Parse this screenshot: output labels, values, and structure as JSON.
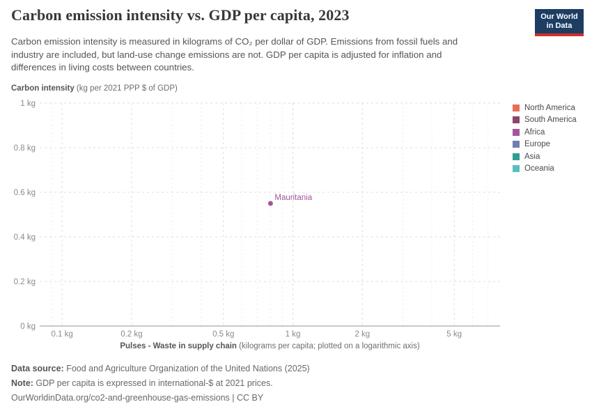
{
  "header": {
    "title": "Carbon emission intensity vs. GDP per capita, 2023",
    "subtitle_lines": [
      "Carbon emission intensity is measured in kilograms of CO₂ per dollar of GDP. Emissions from fossil fuels and",
      "industry are included, but land-use change emissions are not. GDP per capita is adjusted for inflation and",
      "differences in living costs between countries."
    ]
  },
  "logo": {
    "line1": "Our World",
    "line2": "in Data",
    "bg_color": "#1d3d63",
    "bar_color": "#cd302a"
  },
  "chart_data": {
    "type": "scatter",
    "title": "Carbon emission intensity vs. GDP per capita, 2023",
    "x_axis": {
      "title_bold": "Pulses - Waste in supply chain",
      "title_rest": " (kilograms per capita; plotted on a logarithmic axis)",
      "scale": "log",
      "range": [
        0.08,
        7.9
      ],
      "ticks": [
        {
          "value": 0.1,
          "label": "0.1 kg"
        },
        {
          "value": 0.2,
          "label": "0.2 kg"
        },
        {
          "value": 0.5,
          "label": "0.5 kg"
        },
        {
          "value": 1,
          "label": "1 kg"
        },
        {
          "value": 2,
          "label": "2 kg"
        },
        {
          "value": 5,
          "label": "5 kg"
        }
      ],
      "minor_gridlines": [
        0.09,
        0.3,
        0.4,
        0.6,
        0.7,
        0.8,
        0.9,
        3,
        4,
        6,
        7
      ]
    },
    "y_axis": {
      "title_bold": "Carbon intensity",
      "title_rest": " (kg per 2021 PPP $ of GDP)",
      "scale": "linear",
      "range": [
        0,
        1
      ],
      "ticks": [
        {
          "value": 0,
          "label": "0 kg"
        },
        {
          "value": 0.2,
          "label": "0.2 kg"
        },
        {
          "value": 0.4,
          "label": "0.4 kg"
        },
        {
          "value": 0.6,
          "label": "0.6 kg"
        },
        {
          "value": 0.8,
          "label": "0.8 kg"
        },
        {
          "value": 1,
          "label": "1 kg"
        }
      ]
    },
    "points": [
      {
        "name": "Mauritania",
        "continent": "Africa",
        "x": 0.8,
        "y": 0.55,
        "color": "#a2559c"
      }
    ],
    "grid": true,
    "legend_position": "right",
    "colors": {
      "major_gridline": "#dcdcdc",
      "minor_gridline": "#ececec",
      "axis_line": "#a6a6a6",
      "tick_label": "#8a8a8a"
    }
  },
  "legend": {
    "items": [
      {
        "label": "North America",
        "color": "#e56e5a"
      },
      {
        "label": "South America",
        "color": "#8c4569"
      },
      {
        "label": "Africa",
        "color": "#a2559c"
      },
      {
        "label": "Europe",
        "color": "#6d7fb0"
      },
      {
        "label": "Asia",
        "color": "#2e9e92"
      },
      {
        "label": "Oceania",
        "color": "#58bec4"
      }
    ]
  },
  "footer": {
    "data_source_label": "Data source:",
    "data_source_text": " Food and Agriculture Organization of the United Nations (2025)",
    "note_label": "Note:",
    "note_text": " GDP per capita is expressed in international-$ at 2021 prices.",
    "citation_url": "OurWorldinData.org/co2-and-greenhouse-gas-emissions",
    "citation_suffix": " | CC BY"
  }
}
